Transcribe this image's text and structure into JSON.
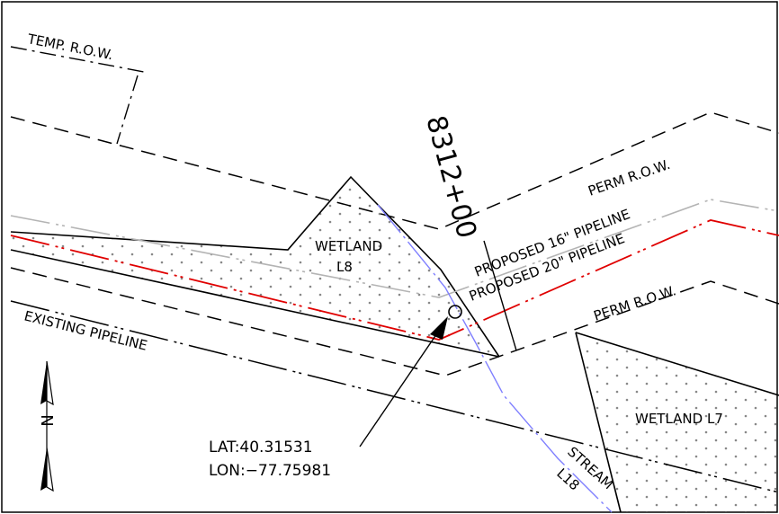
{
  "labels": {
    "temp_row": "TEMP. R.O.W.",
    "station": "8312+00",
    "perm_row_top": "PERM R.O.W.",
    "proposed_16": "PROPOSED 16\" PIPELINE",
    "proposed_20": "PROPOSED 20\" PIPELINE",
    "perm_row_bottom": "PERM R.O.W.",
    "wetland_l8_name": "WETLAND",
    "wetland_l8_id": "L8",
    "existing_pipeline": "EXISTING PIPELINE",
    "wetland_l7": "WETLAND L7",
    "stream_name": "STREAM",
    "stream_id": "L18",
    "lat": "LAT:40.31531",
    "lon": "LON:−77.75981",
    "north_arrow": "N"
  },
  "colors": {
    "linework": "#000000",
    "proposed_20": "#e00000",
    "proposed_16": "#b4b4b4",
    "stream": "#7f7fff",
    "wetland_dots": "#888888"
  },
  "icons": {
    "north_arrow": "north-arrow-icon",
    "crossing_marker": "circle-target-icon"
  }
}
